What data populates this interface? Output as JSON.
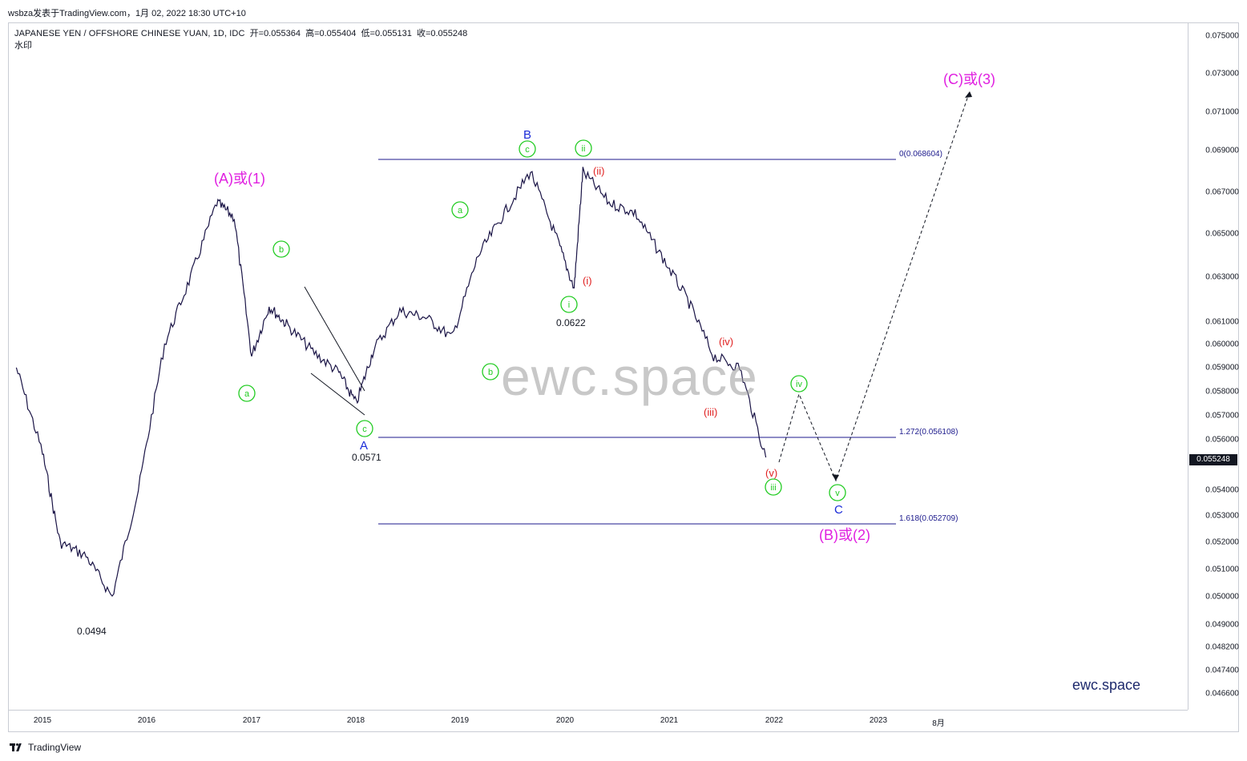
{
  "header": {
    "published": "wsbza发表于TradingView.com，1月 02, 2022 18:30 UTC+10"
  },
  "legend": {
    "symbol": "JAPANESE YEN / OFFSHORE CHINESE YUAN, 1D, IDC",
    "open": "开=0.055364",
    "high": "高=0.055404",
    "low": "低=0.055131",
    "close": "收=0.055248",
    "watermark_label": "水印"
  },
  "price_scale": {
    "labels": [
      "0.075000",
      "0.073000",
      "0.071000",
      "0.069000",
      "0.067000",
      "0.065000",
      "0.063000",
      "0.061000",
      "0.060000",
      "0.059000",
      "0.058000",
      "0.057000",
      "0.056000",
      "0.054000",
      "0.053000",
      "0.052000",
      "0.051000",
      "0.050000",
      "0.049000",
      "0.048200",
      "0.047400",
      "0.046600"
    ],
    "current_price": "0.055248"
  },
  "time_scale": {
    "labels": [
      "2015",
      "2016",
      "2017",
      "2018",
      "2019",
      "2020",
      "2021",
      "2022",
      "2023",
      "8月"
    ]
  },
  "annotations": {
    "wave_A1": "(A)或(1)",
    "wave_C3": "(C)或(3)",
    "wave_B2": "(B)或(2)",
    "low_2015": "0.0494",
    "low_A": "0.0571",
    "low_i": "0.0622",
    "B": "B",
    "A": "A",
    "C": "C",
    "circ_a1": "a",
    "circ_b1": "b",
    "circ_c1": "c",
    "circ_a2": "a",
    "circ_b2": "b",
    "circ_c2": "c",
    "circ_i": "i",
    "circ_ii": "ii",
    "circ_iii": "iii",
    "circ_iv": "iv",
    "circ_v": "v",
    "red_i": "(i)",
    "red_ii": "(ii)",
    "red_iii": "(iii)",
    "red_iv": "(iv)",
    "red_v": "(v)",
    "fib_0": "0(0.068604)",
    "fib_1272": "1.272(0.056108)",
    "fib_1618": "1.618(0.052709)"
  },
  "watermark": "ewc.space",
  "brand": "ewc.space",
  "footer": {
    "logo_text": "TradingView"
  },
  "colors": {
    "candles": "#1a1446",
    "fib_lines": "#1c1a8c",
    "magenta": "#e020e0",
    "green": "#22cc22",
    "red": "#e02020",
    "blue_label": "#1a2bd8"
  },
  "chart_data": {
    "type": "line",
    "series": [
      {
        "x": [
          "2014-10",
          "2015-01",
          "2015-03",
          "2015-06",
          "2015-09",
          "2015-12",
          "2016-03",
          "2016-06",
          "2016-09",
          "2016-11",
          "2017-01",
          "2017-03",
          "2017-05",
          "2017-08",
          "2017-11",
          "2018-01",
          "2018-03",
          "2018-06",
          "2018-09",
          "2018-12",
          "2019-03",
          "2019-06",
          "2019-09",
          "2019-12",
          "2020-02",
          "2020-03",
          "2020-06",
          "2020-09",
          "2020-12",
          "2021-03",
          "2021-06",
          "2021-09",
          "2021-12"
        ],
        "values": [
          0.059,
          0.0555,
          0.052,
          0.0515,
          0.05,
          0.054,
          0.06,
          0.063,
          0.0665,
          0.0658,
          0.0595,
          0.0617,
          0.0609,
          0.0597,
          0.0588,
          0.0575,
          0.0598,
          0.0615,
          0.0612,
          0.0603,
          0.064,
          0.066,
          0.068,
          0.0648,
          0.0625,
          0.068,
          0.0665,
          0.066,
          0.064,
          0.062,
          0.0595,
          0.059,
          0.0553
        ]
      }
    ],
    "ylim": [
      0.0462,
      0.0755
    ]
  }
}
